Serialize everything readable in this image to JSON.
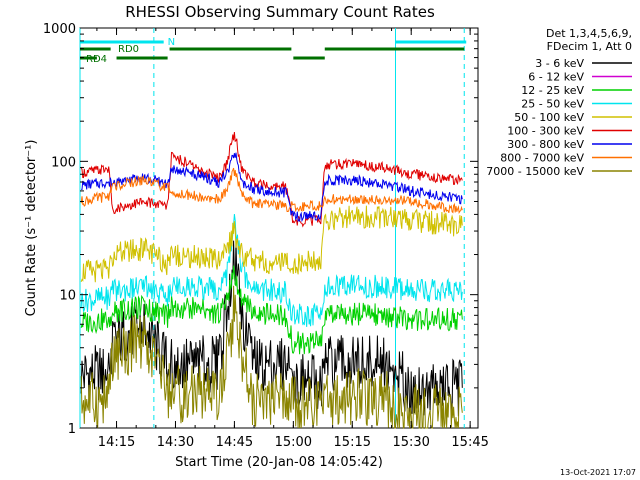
{
  "chart_data": {
    "type": "line",
    "title": "RHESSI Observing Summary Count Rates",
    "xlabel": "Start Time (20-Jan-08 14:05:42)",
    "ylabel": "Count Rate (s⁻¹ detector⁻¹)",
    "y_scale": "log",
    "ylim": [
      1,
      1000
    ],
    "xlim": [
      "14:05:42",
      "15:47:00"
    ],
    "x_ticks": [
      "14:15",
      "14:30",
      "14:45",
      "15:00",
      "15:15",
      "15:30",
      "15:45"
    ],
    "y_ticks": [
      "1",
      "10",
      "100",
      "1000"
    ],
    "footer": "13-Oct-2021 17:07",
    "legend_header": [
      "Det 1,3,4,5,6,9,",
      "FDecim 1, Att 0"
    ],
    "legend_position": "top-right",
    "annotations": {
      "flags": [
        {
          "label": "N",
          "color": "#00e5ee",
          "segments": [
            [
              "14:05:42",
              "14:27:00"
            ],
            [
              "15:26:00",
              "15:44:00"
            ]
          ]
        },
        {
          "label": "RD0",
          "color": "#007000",
          "segments": [
            [
              "14:05:42",
              "14:13:30"
            ],
            [
              "14:28:30",
              "14:59:30"
            ],
            [
              "15:08:00",
              "15:43:30"
            ]
          ]
        },
        {
          "label": "RD4",
          "color": "#007000",
          "segments": [
            [
              "14:05:42",
              "14:10:00"
            ],
            [
              "14:15:00",
              "14:28:00"
            ],
            [
              "15:00:00",
              "15:08:00"
            ]
          ]
        }
      ],
      "solid_verticals": [
        "14:05:42",
        "15:26:00"
      ],
      "dashed_verticals": [
        "14:24:30",
        "15:43:30"
      ]
    },
    "x": [
      "14:06",
      "14:13",
      "14:14",
      "14:22",
      "14:28",
      "14:29",
      "14:36",
      "14:41",
      "14:43",
      "14:45",
      "14:47",
      "14:50",
      "14:58",
      "15:00",
      "15:07",
      "15:08",
      "15:15",
      "15:23",
      "15:30",
      "15:43"
    ],
    "series": [
      {
        "name": "3 - 6 keV",
        "color": "#000000",
        "values": [
          2.5,
          2.6,
          4.5,
          5.8,
          3.0,
          3.0,
          3.0,
          3.0,
          8,
          21,
          6,
          3.0,
          3.0,
          2.2,
          2.2,
          3.0,
          3.0,
          3.0,
          2.0,
          2.0
        ]
      },
      {
        "name": "6 - 12 keV",
        "color": "#d000d0",
        "values": [
          null,
          null,
          null,
          null,
          null,
          null,
          null,
          null,
          null,
          null,
          null,
          null,
          null,
          null,
          null,
          null,
          null,
          null,
          null,
          null
        ]
      },
      {
        "name": "12 - 25 keV",
        "color": "#00d000",
        "values": [
          6.2,
          6.5,
          7.5,
          8.0,
          6.8,
          8.2,
          7.8,
          7.3,
          9,
          15,
          9,
          7.2,
          6.8,
          4.3,
          4.4,
          7.2,
          7.2,
          7.0,
          6.5,
          6.5
        ]
      },
      {
        "name": "25 - 50 keV",
        "color": "#00e5ee",
        "values": [
          9.0,
          9.5,
          10.5,
          11.5,
          9.5,
          11.8,
          11.2,
          10.8,
          14,
          35,
          15,
          11.0,
          10.5,
          7.0,
          7.0,
          11.5,
          11.5,
          11.5,
          11.0,
          10.5
        ]
      },
      {
        "name": "50 - 100 keV",
        "color": "#d0c000",
        "values": [
          15,
          15,
          20,
          22,
          17,
          20,
          19,
          18,
          22,
          30,
          20,
          18,
          17,
          17,
          18,
          36,
          38,
          38,
          36,
          33
        ]
      },
      {
        "name": "100 - 300 keV",
        "color": "#e00000",
        "values": [
          82,
          88,
          44,
          50,
          46,
          110,
          88,
          75,
          95,
          165,
          85,
          70,
          65,
          35,
          36,
          95,
          95,
          90,
          80,
          72
        ]
      },
      {
        "name": "300 - 800 keV",
        "color": "#0000ee",
        "values": [
          66,
          70,
          70,
          75,
          68,
          90,
          78,
          70,
          80,
          120,
          70,
          62,
          58,
          38,
          40,
          72,
          72,
          68,
          60,
          52
        ]
      },
      {
        "name": "800 - 7000 keV",
        "color": "#ff7000",
        "values": [
          50,
          55,
          65,
          72,
          63,
          58,
          55,
          52,
          60,
          85,
          55,
          48,
          46,
          46,
          47,
          52,
          52,
          52,
          50,
          43
        ]
      },
      {
        "name": "7000 - 15000 keV",
        "color": "#8a8400",
        "values": [
          1.6,
          1.6,
          3.5,
          4.7,
          2.0,
          1.8,
          1.8,
          1.8,
          3,
          8,
          3,
          1.6,
          1.6,
          1.5,
          1.5,
          1.7,
          1.7,
          1.7,
          1.3,
          1.3
        ]
      }
    ]
  }
}
